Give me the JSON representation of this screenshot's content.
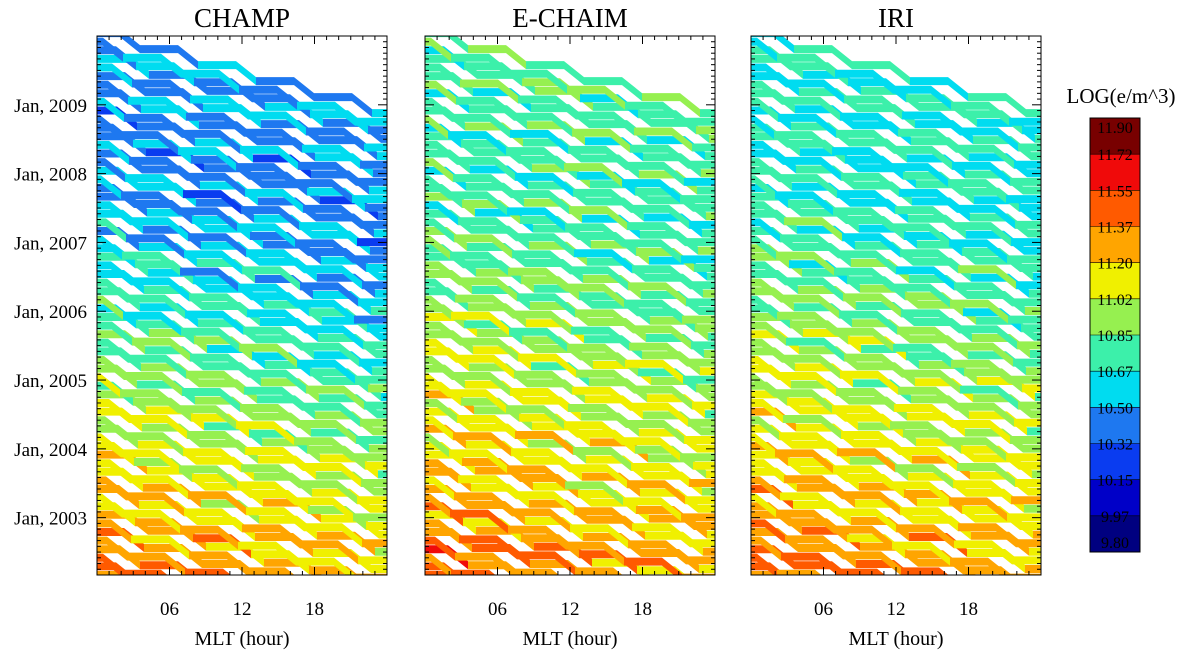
{
  "chart_data": {
    "type": "heatmap",
    "panels": [
      {
        "title": "CHAMP",
        "xlabel": "MLT (hour)"
      },
      {
        "title": "E-CHAIM",
        "xlabel": "MLT (hour)"
      },
      {
        "title": "IRI",
        "xlabel": "MLT (hour)"
      }
    ],
    "x_range": [
      0,
      24
    ],
    "x_ticks": [
      {
        "value": 6,
        "label": "06"
      },
      {
        "value": 12,
        "label": "12"
      },
      {
        "value": 18,
        "label": "18"
      }
    ],
    "y_range": [
      "2002-03",
      "2009-12"
    ],
    "y_ticks": [
      {
        "value": "2003-01",
        "label": "Jan, 2003"
      },
      {
        "value": "2004-01",
        "label": "Jan, 2004"
      },
      {
        "value": "2005-01",
        "label": "Jan, 2005"
      },
      {
        "value": "2006-01",
        "label": "Jan, 2006"
      },
      {
        "value": "2007-01",
        "label": "Jan, 2007"
      },
      {
        "value": "2008-01",
        "label": "Jan, 2008"
      },
      {
        "value": "2009-01",
        "label": "Jan, 2009"
      }
    ],
    "colorbar": {
      "title": "LOG(e/m^3)",
      "levels": [
        "9.80",
        "9.97",
        "10.15",
        "10.32",
        "10.50",
        "10.67",
        "10.85",
        "11.02",
        "11.20",
        "11.37",
        "11.55",
        "11.72",
        "11.90"
      ],
      "colors": [
        "#000080",
        "#0000c8",
        "#0a3cf0",
        "#1e78f0",
        "#00dcf0",
        "#3cf0aa",
        "#96f050",
        "#f0f000",
        "#ffa500",
        "#ff5a00",
        "#f00a0a",
        "#780000"
      ]
    },
    "bands_per_year": 8,
    "levels_by_year": [
      {
        "year": 2002,
        "CHAMP": 11.36,
        "E-CHAIM": 11.42,
        "IRI": 11.4
      },
      {
        "year": 2003,
        "CHAMP": 11.18,
        "E-CHAIM": 11.24,
        "IRI": 11.22
      },
      {
        "year": 2004,
        "CHAMP": 11.02,
        "E-CHAIM": 11.12,
        "IRI": 11.1
      },
      {
        "year": 2005,
        "CHAMP": 10.86,
        "E-CHAIM": 11.0,
        "IRI": 10.98
      },
      {
        "year": 2006,
        "CHAMP": 10.68,
        "E-CHAIM": 10.88,
        "IRI": 10.86
      },
      {
        "year": 2007,
        "CHAMP": 10.54,
        "E-CHAIM": 10.78,
        "IRI": 10.72
      },
      {
        "year": 2008,
        "CHAMP": 10.42,
        "E-CHAIM": 10.74,
        "IRI": 10.66
      },
      {
        "year": 2009,
        "CHAMP": 10.48,
        "E-CHAIM": 10.78,
        "IRI": 10.7
      }
    ]
  }
}
